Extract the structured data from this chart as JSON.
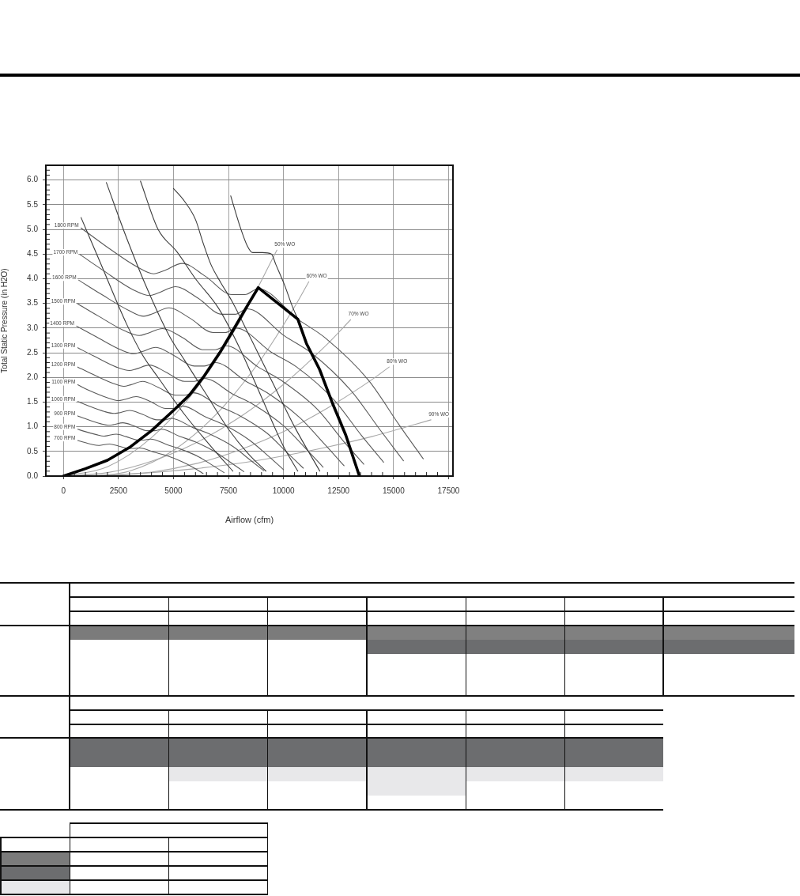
{
  "chart_data": {
    "type": "line",
    "xlabel": "Airflow (cfm)",
    "ylabel": "Total Static Pressure (in H2O)",
    "xlim": [
      -800,
      17700
    ],
    "xticks": [
      0,
      {
        "value": 500,
        "label": null
      },
      {
        "value": 1000,
        "label": null
      },
      {
        "value": 1500,
        "label": null
      },
      {
        "value": 2000,
        "label": null
      },
      2500,
      {
        "value": 3000,
        "label": null
      },
      {
        "value": 3500,
        "label": null
      },
      {
        "value": 4000,
        "label": null
      },
      {
        "value": 4500,
        "label": null
      },
      5000,
      {
        "value": 5500,
        "label": null
      },
      {
        "value": 6000,
        "label": null
      },
      {
        "value": 6500,
        "label": null
      },
      {
        "value": 7000,
        "label": null
      },
      7500,
      {
        "value": 8000,
        "label": null
      },
      {
        "value": 8500,
        "label": null
      },
      {
        "value": 9000,
        "label": null
      },
      {
        "value": 9500,
        "label": null
      },
      10000,
      {
        "value": 10500,
        "label": null
      },
      {
        "value": 11000,
        "label": null
      },
      {
        "value": 11500,
        "label": null
      },
      {
        "value": 12000,
        "label": null
      },
      12500,
      {
        "value": 13000,
        "label": null
      },
      {
        "value": 13500,
        "label": null
      },
      {
        "value": 14000,
        "label": null
      },
      {
        "value": 14500,
        "label": null
      },
      15000,
      {
        "value": 15500,
        "label": null
      },
      {
        "value": 16000,
        "label": null
      },
      {
        "value": 16500,
        "label": null
      },
      {
        "value": 17000,
        "label": null
      },
      17500
    ],
    "ylim": [
      0,
      6.3
    ],
    "yticks": [
      {
        "value": 0,
        "label": "0.0"
      },
      {
        "value": 0.1,
        "label": null
      },
      {
        "value": 0.2,
        "label": null
      },
      {
        "value": 0.3,
        "label": null
      },
      {
        "value": 0.4,
        "label": null
      },
      0.5,
      {
        "value": 0.6,
        "label": null
      },
      {
        "value": 0.7,
        "label": null
      },
      {
        "value": 0.8,
        "label": null
      },
      {
        "value": 0.9,
        "label": null
      },
      {
        "value": 1,
        "label": "1.0"
      },
      {
        "value": 1.1,
        "label": null
      },
      {
        "value": 1.2,
        "label": null
      },
      {
        "value": 1.3,
        "label": null
      },
      {
        "value": 1.4,
        "label": null
      },
      1.5,
      {
        "value": 1.6,
        "label": null
      },
      {
        "value": 1.7,
        "label": null
      },
      {
        "value": 1.8,
        "label": null
      },
      {
        "value": 1.9,
        "label": null
      },
      {
        "value": 2,
        "label": "2.0"
      },
      {
        "value": 2.1,
        "label": null
      },
      {
        "value": 2.2,
        "label": null
      },
      {
        "value": 2.3,
        "label": null
      },
      {
        "value": 2.4,
        "label": null
      },
      2.5,
      {
        "value": 2.6,
        "label": null
      },
      {
        "value": 2.7,
        "label": null
      },
      {
        "value": 2.8,
        "label": null
      },
      {
        "value": 2.9,
        "label": null
      },
      {
        "value": 3,
        "label": "3.0"
      },
      {
        "value": 3.1,
        "label": null
      },
      {
        "value": 3.2,
        "label": null
      },
      {
        "value": 3.3,
        "label": null
      },
      {
        "value": 3.4,
        "label": null
      },
      3.5,
      {
        "value": 3.6,
        "label": null
      },
      {
        "value": 3.7,
        "label": null
      },
      {
        "value": 3.8,
        "label": null
      },
      {
        "value": 3.9,
        "label": null
      },
      {
        "value": 4,
        "label": "4.0"
      },
      {
        "value": 4.1,
        "label": null
      },
      {
        "value": 4.2,
        "label": null
      },
      {
        "value": 4.3,
        "label": null
      },
      {
        "value": 4.4,
        "label": null
      },
      4.5,
      {
        "value": 4.6,
        "label": null
      },
      {
        "value": 4.7,
        "label": null
      },
      {
        "value": 4.8,
        "label": null
      },
      {
        "value": 4.9,
        "label": null
      },
      {
        "value": 5,
        "label": "5.0"
      },
      {
        "value": 5.1,
        "label": null
      },
      {
        "value": 5.2,
        "label": null
      },
      {
        "value": 5.3,
        "label": null
      },
      {
        "value": 5.4,
        "label": null
      },
      5.5,
      {
        "value": 5.6,
        "label": null
      },
      {
        "value": 5.7,
        "label": null
      },
      {
        "value": 5.8,
        "label": null
      },
      {
        "value": 5.9,
        "label": null
      },
      {
        "value": 6,
        "label": "6.0"
      },
      {
        "value": 6.1,
        "label": null
      },
      {
        "value": 6.2,
        "label": null
      }
    ],
    "grid": true,
    "series": [
      {
        "name": "1800 RPM",
        "color": "#5a5a5a",
        "x": [
          800,
          1900,
          3350,
          4100,
          4550,
          5400,
          6450,
          7650,
          8250,
          8850,
          10650,
          11900,
          13850,
          15250,
          16350
        ],
        "values": [
          5.03,
          4.67,
          4.24,
          4.1,
          4.16,
          4.31,
          4.05,
          3.68,
          3.68,
          3.8,
          3.18,
          2.8,
          1.95,
          1.04,
          0.35
        ]
      },
      {
        "name": "1700 RPM",
        "color": "#5a5a5a",
        "x": [
          750,
          1800,
          3150,
          3900,
          4300,
          5100,
          6100,
          7200,
          7800,
          8350,
          10050,
          11250,
          13050,
          14400,
          15450
        ],
        "values": [
          4.49,
          4.17,
          3.78,
          3.66,
          3.71,
          3.84,
          3.61,
          3.28,
          3.28,
          3.39,
          2.84,
          2.5,
          1.74,
          0.93,
          0.31
        ]
      },
      {
        "name": "1600 RPM",
        "color": "#5a5a5a",
        "x": [
          700,
          1700,
          3000,
          3650,
          4050,
          4800,
          5750,
          6800,
          7350,
          7850,
          9450,
          10600,
          12300,
          13550,
          14550
        ],
        "values": [
          3.97,
          3.69,
          3.35,
          3.24,
          3.29,
          3.41,
          3.2,
          2.91,
          2.91,
          3.0,
          2.51,
          2.21,
          1.54,
          0.82,
          0.28
        ]
      },
      {
        "name": "1500 RPM",
        "color": "#5a5a5a",
        "x": [
          650,
          1600,
          2800,
          3450,
          3800,
          4500,
          5400,
          6350,
          6900,
          7400,
          8850,
          9900,
          11550,
          12700,
          13650
        ],
        "values": [
          3.49,
          3.24,
          2.94,
          2.85,
          2.89,
          2.99,
          2.81,
          2.56,
          2.56,
          2.64,
          2.21,
          1.94,
          1.35,
          0.72,
          0.24
        ]
      },
      {
        "name": "1400 RPM",
        "color": "#5a5a5a",
        "x": [
          600,
          1500,
          2600,
          3200,
          3550,
          4200,
          5000,
          5950,
          6400,
          6900,
          8300,
          9250,
          10750,
          11900,
          12750
        ],
        "values": [
          3.04,
          2.82,
          2.56,
          2.48,
          2.52,
          2.61,
          2.45,
          2.23,
          2.23,
          2.3,
          1.92,
          1.69,
          1.18,
          0.63,
          0.21
        ]
      },
      {
        "name": "1300 RPM",
        "color": "#5a5a5a",
        "x": [
          650,
          1350,
          2400,
          3000,
          3300,
          3900,
          4650,
          5500,
          5950,
          6400,
          7700,
          8600,
          10000,
          11050,
          11800
        ],
        "values": [
          2.6,
          2.44,
          2.21,
          2.14,
          2.17,
          2.25,
          2.11,
          1.92,
          1.92,
          1.98,
          1.66,
          1.46,
          1.02,
          0.54,
          0.18
        ]
      },
      {
        "name": "1200 RPM",
        "color": "#5a5a5a",
        "x": [
          650,
          1250,
          2250,
          2750,
          3050,
          3600,
          4300,
          5100,
          5500,
          5900,
          7100,
          7950,
          9250,
          10200,
          10900
        ],
        "values": [
          2.21,
          2.08,
          1.88,
          1.82,
          1.85,
          1.92,
          1.8,
          1.64,
          1.64,
          1.69,
          1.41,
          1.24,
          0.87,
          0.46,
          0.16
        ]
      },
      {
        "name": "1100 RPM",
        "color": "#5a5a5a",
        "x": [
          650,
          1150,
          2050,
          2500,
          2750,
          3300,
          3950,
          4650,
          5050,
          5400,
          6500,
          7250,
          8450,
          9350,
          10000
        ],
        "values": [
          1.85,
          1.74,
          1.58,
          1.53,
          1.55,
          1.61,
          1.51,
          1.37,
          1.37,
          1.42,
          1.19,
          1.05,
          0.73,
          0.39,
          0.13
        ]
      },
      {
        "name": "1000 RPM",
        "color": "#5a5a5a",
        "x": [
          650,
          1050,
          1850,
          2300,
          2500,
          3000,
          3600,
          4250,
          4600,
          4900,
          5900,
          6600,
          7700,
          8500,
          9100
        ],
        "values": [
          1.51,
          1.44,
          1.31,
          1.27,
          1.28,
          1.33,
          1.25,
          1.14,
          1.14,
          1.17,
          0.98,
          0.86,
          0.6,
          0.32,
          0.11
        ]
      },
      {
        "name": "900 RPM",
        "color": "#5a5a5a",
        "x": [
          650,
          950,
          1700,
          2050,
          2250,
          2700,
          3250,
          3800,
          4150,
          4450,
          5300,
          5950,
          6900,
          7650,
          8200
        ],
        "values": [
          1.22,
          1.17,
          1.06,
          1.03,
          1.04,
          1.08,
          1.01,
          0.92,
          0.92,
          0.95,
          0.8,
          0.7,
          0.49,
          0.26,
          0.09
        ]
      },
      {
        "name": "800 RPM",
        "color": "#5a5a5a",
        "x": [
          650,
          850,
          1500,
          1850,
          2000,
          2400,
          2850,
          3400,
          3650,
          3950,
          4750,
          5300,
          6150,
          6800,
          7300
        ],
        "values": [
          0.95,
          0.92,
          0.84,
          0.81,
          0.82,
          0.85,
          0.8,
          0.73,
          0.73,
          0.75,
          0.63,
          0.55,
          0.39,
          0.21,
          0.07
        ]
      },
      {
        "name": "700 RPM",
        "color": "#5a5a5a",
        "x": [
          650,
          1300,
          1600,
          1750,
          2100,
          2500,
          2950,
          3200,
          3450,
          4150,
          4650,
          5400,
          5950,
          6350
        ],
        "values": [
          0.72,
          0.64,
          0.62,
          0.63,
          0.65,
          0.61,
          0.56,
          0.56,
          0.57,
          0.48,
          0.42,
          0.29,
          0.16,
          0.05
        ]
      },
      {
        "color": "#3c3c3c",
        "x": [
          800,
          1700,
          2850,
          3600,
          4300,
          5500,
          6900,
          7700
        ],
        "values": [
          5.24,
          4.3,
          3.1,
          2.45,
          2.0,
          1.25,
          0.5,
          0.1
        ]
      },
      {
        "color": "#3c3c3c",
        "x": [
          1950,
          2850,
          3850,
          4800,
          5500,
          6500,
          7500,
          8400,
          9200
        ],
        "values": [
          5.95,
          4.85,
          3.75,
          2.85,
          2.35,
          1.65,
          0.95,
          0.45,
          0.1
        ]
      },
      {
        "color": "#3c3c3c",
        "x": [
          3500,
          4300,
          5150,
          6000,
          7050,
          8000,
          9000,
          10000,
          10650
        ],
        "values": [
          5.98,
          5.0,
          4.55,
          4.0,
          3.4,
          2.6,
          1.6,
          0.6,
          0.1
        ]
      },
      {
        "color": "#3c3c3c",
        "x": [
          5000,
          5500,
          6000,
          6350,
          6700,
          7150,
          7650,
          8500,
          9500,
          10500,
          11650
        ],
        "values": [
          5.83,
          5.57,
          5.2,
          4.72,
          4.29,
          3.92,
          3.55,
          2.8,
          1.9,
          1.0,
          0.1
        ]
      },
      {
        "color": "#3c3c3c",
        "x": [
          7600,
          8000,
          8350,
          8600,
          9050,
          9450,
          9650,
          10050,
          10400,
          10650
        ],
        "values": [
          5.68,
          5.09,
          4.67,
          4.53,
          4.53,
          4.5,
          4.29,
          3.87,
          3.44,
          3.18
        ]
      },
      {
        "name": "50% WO",
        "color": "#a8a8a8",
        "x": [
          0,
          2000,
          4000,
          6000,
          8000,
          9700
        ],
        "values": [
          0,
          0.19,
          0.78,
          1.75,
          3.12,
          4.58
        ]
      },
      {
        "name": "60% WO",
        "color": "#a8a8a8",
        "x": [
          1500,
          3000,
          5000,
          7000,
          9000,
          10500,
          11150
        ],
        "values": [
          0,
          0.1,
          0.52,
          1.28,
          2.38,
          3.43,
          3.94
        ]
      },
      {
        "name": "70% WO",
        "color": "#a8a8a8",
        "x": [
          0,
          2000,
          4000,
          6000,
          8000,
          10000,
          12000,
          13050
        ],
        "values": [
          0,
          0.07,
          0.3,
          0.67,
          1.19,
          1.86,
          2.68,
          3.17
        ]
      },
      {
        "name": "80% WO",
        "color": "#a8a8a8",
        "x": [
          1500,
          4000,
          6000,
          8000,
          10000,
          12000,
          14000,
          14800
        ],
        "values": [
          0,
          0.08,
          0.25,
          0.53,
          0.9,
          1.38,
          1.95,
          2.21
        ]
      },
      {
        "name": "90% WO",
        "color": "#a8a8a8",
        "x": [
          0,
          2000,
          4000,
          6000,
          8000,
          10000,
          12000,
          14000,
          16000,
          16700
        ],
        "values": [
          0,
          0.02,
          0.07,
          0.15,
          0.26,
          0.41,
          0.59,
          0.8,
          1.05,
          1.14
        ]
      },
      {
        "color": "#000000",
        "x": [
          0,
          1000,
          2000,
          3000,
          4000,
          5000,
          5700,
          6400,
          7100,
          7700,
          8350,
          8850,
          10650,
          11040,
          11640,
          12230,
          12830,
          13450
        ],
        "values": [
          0,
          0.15,
          0.32,
          0.58,
          0.92,
          1.33,
          1.63,
          2.03,
          2.5,
          2.95,
          3.45,
          3.82,
          3.18,
          2.69,
          2.16,
          1.47,
          0.83,
          0
        ]
      }
    ]
  }
}
